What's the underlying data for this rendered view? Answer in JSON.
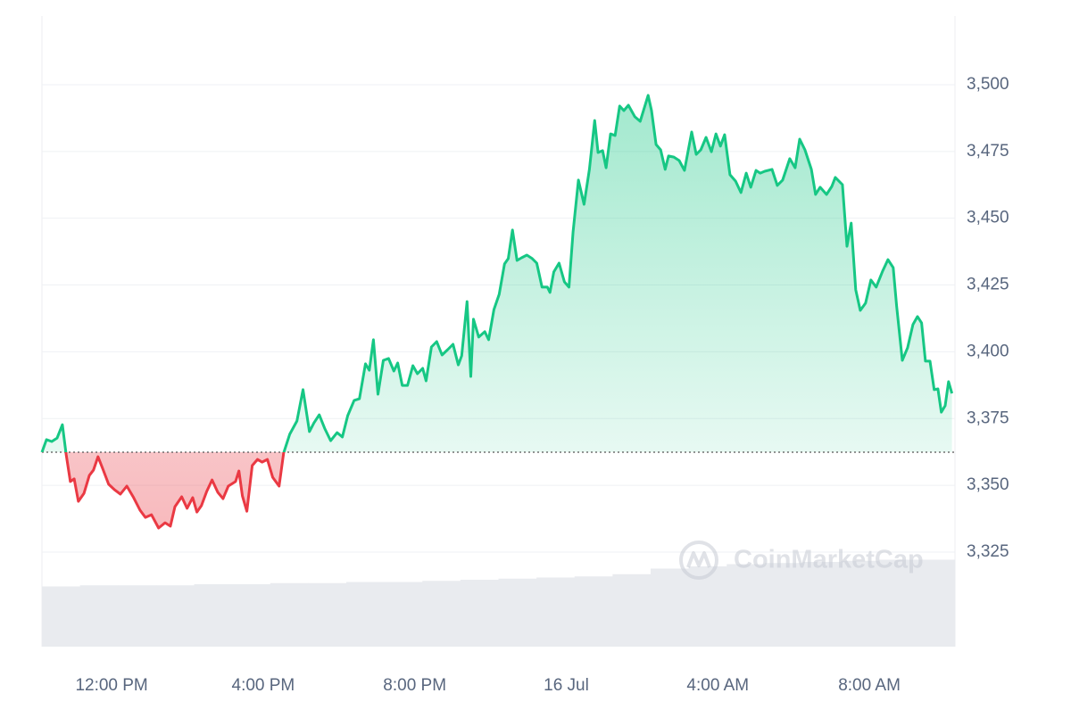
{
  "chart_data": {
    "type": "price-line",
    "watermark": "CoinMarketCap",
    "color_up": "#16c784",
    "color_down": "#ea3943",
    "baseline": 3362.4,
    "x": [
      10.16,
      10.28,
      10.42,
      10.56,
      10.7,
      10.8,
      10.91,
      11.01,
      11.12,
      11.27,
      11.41,
      11.52,
      11.64,
      11.76,
      11.92,
      12.07,
      12.23,
      12.4,
      12.58,
      12.75,
      12.89,
      13.05,
      13.24,
      13.41,
      13.55,
      13.67,
      13.85,
      13.99,
      14.14,
      14.25,
      14.37,
      14.51,
      14.65,
      14.8,
      14.94,
      15.08,
      15.27,
      15.36,
      15.45,
      15.57,
      15.71,
      15.85,
      15.97,
      16.11,
      16.25,
      16.42,
      16.54,
      16.7,
      16.89,
      17.05,
      17.22,
      17.34,
      17.48,
      17.62,
      17.78,
      17.95,
      18.09,
      18.23,
      18.4,
      18.54,
      18.7,
      18.8,
      18.91,
      19.03,
      19.17,
      19.31,
      19.45,
      19.55,
      19.67,
      19.81,
      19.95,
      20.07,
      20.21,
      20.3,
      20.44,
      20.58,
      20.72,
      20.87,
      21.01,
      21.15,
      21.24,
      21.38,
      21.48,
      21.55,
      21.69,
      21.85,
      21.95,
      22.09,
      22.23,
      22.37,
      22.47,
      22.58,
      22.7,
      22.82,
      22.96,
      23.1,
      23.22,
      23.36,
      23.5,
      23.57,
      23.67,
      23.81,
      23.95,
      24.07,
      24.18,
      24.32,
      24.47,
      24.61,
      24.75,
      24.84,
      24.96,
      25.05,
      25.17,
      25.29,
      25.41,
      25.52,
      25.64,
      25.81,
      25.95,
      26.16,
      26.25,
      26.37,
      26.49,
      26.61,
      26.7,
      26.84,
      26.98,
      27.12,
      27.31,
      27.43,
      27.55,
      27.69,
      27.83,
      27.95,
      28.07,
      28.18,
      28.32,
      28.47,
      28.61,
      28.75,
      28.87,
      29.01,
      29.12,
      29.24,
      29.43,
      29.57,
      29.71,
      29.9,
      30.04,
      30.16,
      30.3,
      30.47,
      30.58,
      30.7,
      30.87,
      31.01,
      31.1,
      31.29,
      31.41,
      31.52,
      31.64,
      31.76,
      31.9,
      32.04,
      32.18,
      32.35,
      32.49,
      32.63,
      32.72,
      32.87,
      33.01,
      33.15,
      33.27,
      33.38,
      33.48,
      33.6,
      33.71,
      33.81,
      33.9,
      34.0,
      34.09,
      34.18
    ],
    "values": [
      3362.4,
      3367.1,
      3366.4,
      3367.7,
      3372.7,
      3361.4,
      3351.4,
      3352.4,
      3344.0,
      3347.0,
      3353.7,
      3355.7,
      3360.7,
      3356.4,
      3350.4,
      3348.4,
      3346.7,
      3349.7,
      3345.4,
      3340.7,
      3338.0,
      3339.0,
      3334.0,
      3336.0,
      3334.7,
      3342.0,
      3345.7,
      3341.4,
      3345.4,
      3340.0,
      3342.4,
      3347.7,
      3352.0,
      3347.4,
      3345.0,
      3349.7,
      3351.4,
      3355.4,
      3346.0,
      3340.3,
      3357.4,
      3359.7,
      3358.7,
      3359.7,
      3353.0,
      3349.7,
      3362.1,
      3369.1,
      3374.1,
      3385.8,
      3370.1,
      3373.4,
      3376.4,
      3371.4,
      3366.7,
      3369.7,
      3368.1,
      3376.1,
      3381.8,
      3382.4,
      3395.5,
      3393.1,
      3404.5,
      3384.1,
      3396.8,
      3397.5,
      3392.8,
      3395.8,
      3387.4,
      3387.4,
      3394.8,
      3391.8,
      3393.8,
      3389.1,
      3401.8,
      3403.8,
      3398.8,
      3400.8,
      3402.8,
      3395.1,
      3398.5,
      3418.8,
      3390.8,
      3412.2,
      3405.5,
      3407.5,
      3404.5,
      3415.8,
      3421.5,
      3432.9,
      3434.9,
      3445.6,
      3434.2,
      3435.2,
      3436.2,
      3434.9,
      3433.2,
      3424.2,
      3424.2,
      3422.2,
      3429.9,
      3433.2,
      3426.2,
      3424.2,
      3444.9,
      3464.3,
      3455.2,
      3468.3,
      3486.6,
      3474.6,
      3475.3,
      3468.9,
      3481.6,
      3481.0,
      3492.0,
      3490.3,
      3492.3,
      3488.0,
      3486.3,
      3496.0,
      3490.3,
      3477.6,
      3475.6,
      3468.3,
      3473.3,
      3472.9,
      3471.6,
      3467.9,
      3482.3,
      3473.9,
      3475.6,
      3480.3,
      3474.9,
      3481.6,
      3477.0,
      3481.3,
      3466.3,
      3463.9,
      3459.6,
      3466.9,
      3461.6,
      3467.9,
      3466.9,
      3467.6,
      3468.3,
      3462.3,
      3464.3,
      3472.3,
      3468.9,
      3479.6,
      3475.6,
      3468.3,
      3458.9,
      3461.6,
      3458.9,
      3461.9,
      3465.3,
      3462.6,
      3439.5,
      3448.2,
      3423.2,
      3415.5,
      3418.2,
      3426.9,
      3424.2,
      3430.2,
      3434.5,
      3431.5,
      3417.2,
      3396.8,
      3401.5,
      3410.2,
      3413.2,
      3410.8,
      3396.5,
      3396.5,
      3385.8,
      3386.1,
      3377.4,
      3379.8,
      3388.8,
      3384.4
    ],
    "xlim": [
      10.16,
      34.26
    ],
    "ylim": [
      3289.6,
      3525.7
    ],
    "xticks": [
      {
        "value": 12,
        "label": "12:00 PM"
      },
      {
        "value": 16,
        "label": "4:00 PM"
      },
      {
        "value": 20,
        "label": "8:00 PM"
      },
      {
        "value": 24,
        "label": "16 Jul"
      },
      {
        "value": 28,
        "label": "4:00 AM"
      },
      {
        "value": 32,
        "label": "8:00 AM"
      }
    ],
    "yticks": [
      {
        "value": 3325,
        "label": "3,325"
      },
      {
        "value": 3350,
        "label": "3,350"
      },
      {
        "value": 3375,
        "label": "3,375"
      },
      {
        "value": 3400,
        "label": "3,400"
      },
      {
        "value": 3425,
        "label": "3,425"
      },
      {
        "value": 3450,
        "label": "3,450"
      },
      {
        "value": 3475,
        "label": "3,475"
      },
      {
        "value": 3500,
        "label": "3,500"
      }
    ],
    "grid": true,
    "volume": {
      "color": "#e9ebef",
      "ylim": [
        0,
        100
      ],
      "values": [
        54,
        55,
        55,
        55,
        56,
        56,
        57,
        57,
        58,
        58,
        59,
        60,
        61,
        62,
        63,
        65,
        70,
        72,
        74,
        75,
        76,
        77,
        78,
        78
      ]
    }
  }
}
